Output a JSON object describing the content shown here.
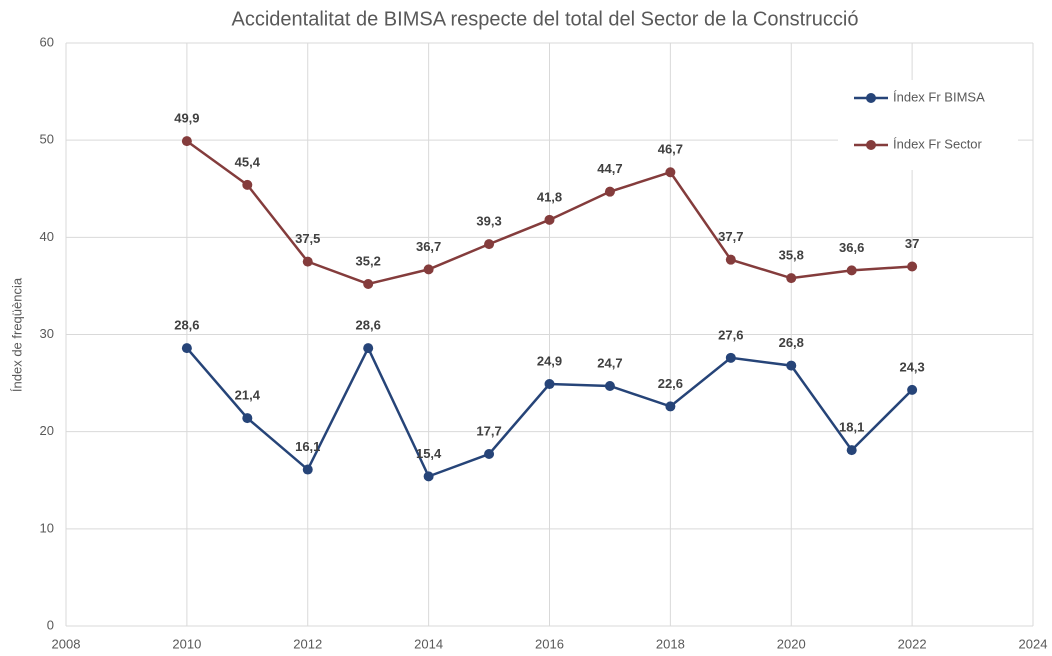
{
  "chart_data": {
    "type": "line",
    "title": "Accidentalitat de BIMSA respecte del total del Sector de la Construcció",
    "y_label": "Índex de freqüència",
    "x": [
      2010,
      2011,
      2012,
      2013,
      2014,
      2015,
      2016,
      2017,
      2018,
      2019,
      2020,
      2021,
      2022
    ],
    "series": [
      {
        "name": "Índex Fr BIMSA",
        "color": "#264478",
        "values": [
          28.6,
          21.4,
          16.1,
          28.6,
          15.4,
          17.7,
          24.9,
          24.7,
          22.6,
          27.6,
          26.8,
          18.1,
          24.3
        ],
        "value_labels": [
          "28,6",
          "21,4",
          "16,1",
          "28,6",
          "15,4",
          "17,7",
          "24,9",
          "24,7",
          "22,6",
          "27,6",
          "26,8",
          "18,1",
          "24,3"
        ]
      },
      {
        "name": "Índex Fr Sector",
        "color": "#843c3c",
        "values": [
          49.9,
          45.4,
          37.5,
          35.2,
          36.7,
          39.3,
          41.8,
          44.7,
          46.7,
          37.7,
          35.8,
          36.6,
          37
        ],
        "value_labels": [
          "49,9",
          "45,4",
          "37,5",
          "35,2",
          "36,7",
          "39,3",
          "41,8",
          "44,7",
          "46,7",
          "37,7",
          "35,8",
          "36,6",
          "37"
        ]
      }
    ],
    "xlim": [
      2008,
      2024
    ],
    "xticks": [
      2008,
      2010,
      2012,
      2014,
      2016,
      2018,
      2020,
      2022,
      2024
    ],
    "ylim": [
      0,
      60
    ],
    "yticks": [
      0,
      10,
      20,
      30,
      40,
      50,
      60
    ],
    "grid": true,
    "legend": "upper right"
  }
}
